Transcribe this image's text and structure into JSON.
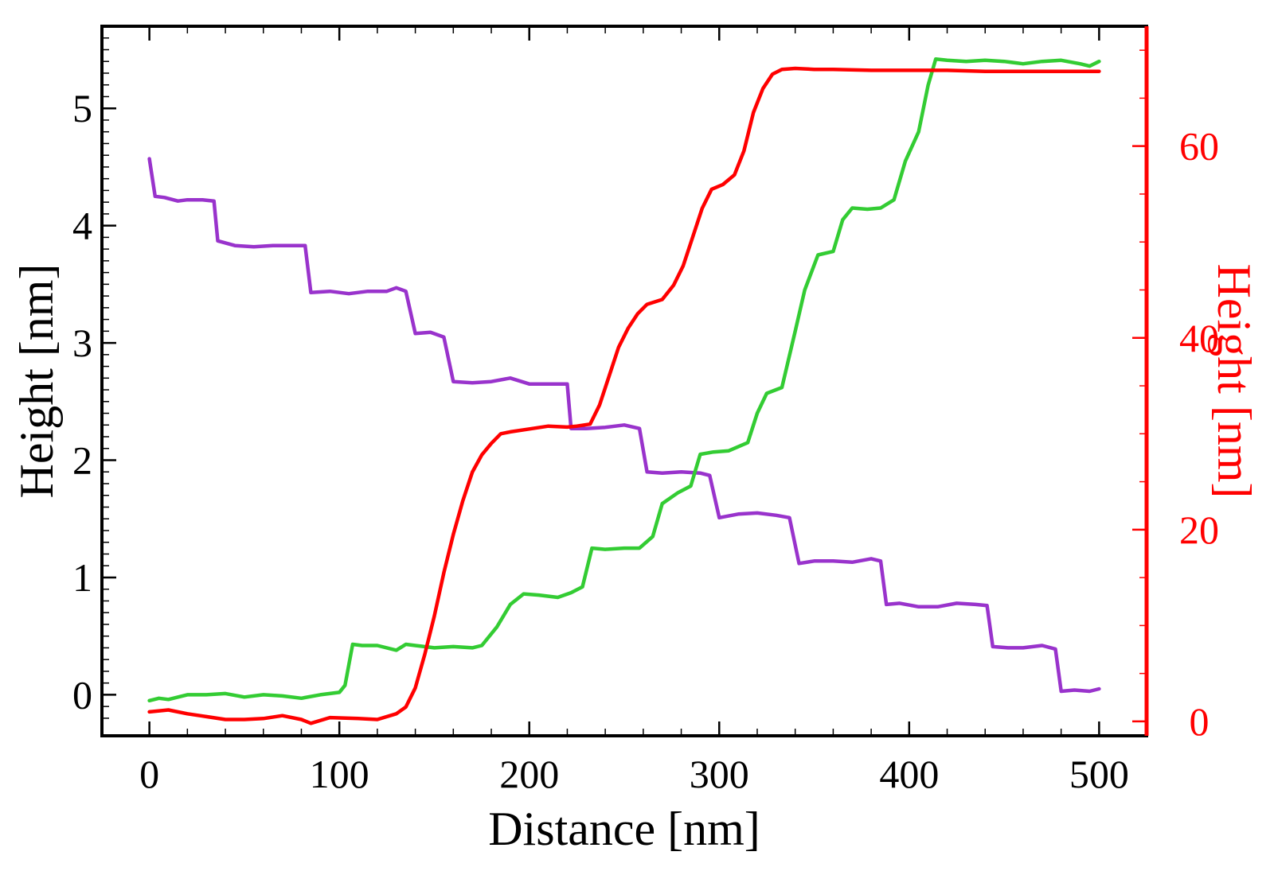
{
  "chart_data": {
    "type": "line",
    "xlabel": "Distance [nm]",
    "ylabel_left": "Height [nm]",
    "ylabel_right": "Height [nm]",
    "xlim": [
      -25,
      525
    ],
    "ylim_left": [
      -0.35,
      5.7
    ],
    "ylim_right": [
      -1.5,
      72.5
    ],
    "x_ticks": [
      0,
      100,
      200,
      300,
      400,
      500
    ],
    "y_ticks_left": [
      0,
      1,
      2,
      3,
      4,
      5
    ],
    "y_ticks_right": [
      0,
      20,
      40,
      60
    ],
    "grid": false,
    "colors": {
      "purple": "#9933cc",
      "green": "#33cc33",
      "red": "#ff0000",
      "axis": "#000000",
      "right_axis": "#ff0000"
    },
    "series": [
      {
        "color": "purple",
        "axis": "left",
        "points": [
          [
            0,
            4.57
          ],
          [
            3,
            4.25
          ],
          [
            8,
            4.24
          ],
          [
            15,
            4.21
          ],
          [
            20,
            4.22
          ],
          [
            28,
            4.22
          ],
          [
            34,
            4.21
          ],
          [
            36,
            3.87
          ],
          [
            45,
            3.83
          ],
          [
            55,
            3.82
          ],
          [
            65,
            3.83
          ],
          [
            75,
            3.83
          ],
          [
            82,
            3.83
          ],
          [
            85,
            3.43
          ],
          [
            95,
            3.44
          ],
          [
            105,
            3.42
          ],
          [
            115,
            3.44
          ],
          [
            125,
            3.44
          ],
          [
            130,
            3.47
          ],
          [
            135,
            3.44
          ],
          [
            140,
            3.08
          ],
          [
            148,
            3.09
          ],
          [
            155,
            3.05
          ],
          [
            160,
            2.67
          ],
          [
            170,
            2.66
          ],
          [
            180,
            2.67
          ],
          [
            190,
            2.7
          ],
          [
            200,
            2.65
          ],
          [
            210,
            2.65
          ],
          [
            220,
            2.65
          ],
          [
            222,
            2.27
          ],
          [
            230,
            2.27
          ],
          [
            240,
            2.28
          ],
          [
            250,
            2.3
          ],
          [
            258,
            2.27
          ],
          [
            262,
            1.9
          ],
          [
            270,
            1.89
          ],
          [
            280,
            1.9
          ],
          [
            290,
            1.89
          ],
          [
            295,
            1.87
          ],
          [
            300,
            1.51
          ],
          [
            310,
            1.54
          ],
          [
            320,
            1.55
          ],
          [
            330,
            1.53
          ],
          [
            337,
            1.51
          ],
          [
            342,
            1.12
          ],
          [
            350,
            1.14
          ],
          [
            360,
            1.14
          ],
          [
            370,
            1.13
          ],
          [
            380,
            1.16
          ],
          [
            385,
            1.14
          ],
          [
            388,
            0.77
          ],
          [
            395,
            0.78
          ],
          [
            405,
            0.75
          ],
          [
            415,
            0.75
          ],
          [
            425,
            0.78
          ],
          [
            435,
            0.77
          ],
          [
            441,
            0.76
          ],
          [
            444,
            0.41
          ],
          [
            452,
            0.4
          ],
          [
            460,
            0.4
          ],
          [
            470,
            0.42
          ],
          [
            477,
            0.39
          ],
          [
            480,
            0.03
          ],
          [
            487,
            0.04
          ],
          [
            495,
            0.03
          ],
          [
            500,
            0.05
          ]
        ]
      },
      {
        "color": "green",
        "axis": "left",
        "points": [
          [
            0,
            -0.05
          ],
          [
            5,
            -0.03
          ],
          [
            10,
            -0.04
          ],
          [
            20,
            0.0
          ],
          [
            30,
            0.0
          ],
          [
            40,
            0.01
          ],
          [
            50,
            -0.02
          ],
          [
            60,
            0.0
          ],
          [
            70,
            -0.01
          ],
          [
            80,
            -0.03
          ],
          [
            90,
            0.0
          ],
          [
            100,
            0.02
          ],
          [
            103,
            0.08
          ],
          [
            107,
            0.43
          ],
          [
            112,
            0.42
          ],
          [
            120,
            0.42
          ],
          [
            130,
            0.38
          ],
          [
            135,
            0.43
          ],
          [
            140,
            0.42
          ],
          [
            150,
            0.4
          ],
          [
            160,
            0.41
          ],
          [
            170,
            0.4
          ],
          [
            175,
            0.42
          ],
          [
            183,
            0.58
          ],
          [
            190,
            0.77
          ],
          [
            197,
            0.86
          ],
          [
            205,
            0.85
          ],
          [
            215,
            0.83
          ],
          [
            222,
            0.87
          ],
          [
            228,
            0.92
          ],
          [
            233,
            1.25
          ],
          [
            240,
            1.24
          ],
          [
            250,
            1.25
          ],
          [
            258,
            1.25
          ],
          [
            265,
            1.35
          ],
          [
            270,
            1.63
          ],
          [
            278,
            1.72
          ],
          [
            285,
            1.78
          ],
          [
            290,
            2.05
          ],
          [
            297,
            2.07
          ],
          [
            305,
            2.08
          ],
          [
            315,
            2.15
          ],
          [
            320,
            2.4
          ],
          [
            325,
            2.57
          ],
          [
            333,
            2.62
          ],
          [
            340,
            3.1
          ],
          [
            345,
            3.45
          ],
          [
            352,
            3.75
          ],
          [
            360,
            3.78
          ],
          [
            365,
            4.05
          ],
          [
            370,
            4.15
          ],
          [
            378,
            4.14
          ],
          [
            385,
            4.15
          ],
          [
            392,
            4.22
          ],
          [
            398,
            4.55
          ],
          [
            405,
            4.8
          ],
          [
            410,
            5.2
          ],
          [
            414,
            5.42
          ],
          [
            420,
            5.41
          ],
          [
            430,
            5.4
          ],
          [
            440,
            5.41
          ],
          [
            450,
            5.4
          ],
          [
            460,
            5.38
          ],
          [
            470,
            5.4
          ],
          [
            480,
            5.41
          ],
          [
            490,
            5.38
          ],
          [
            495,
            5.36
          ],
          [
            500,
            5.4
          ]
        ]
      },
      {
        "color": "red",
        "axis": "right",
        "points": [
          [
            0,
            1.0
          ],
          [
            10,
            1.2
          ],
          [
            20,
            0.8
          ],
          [
            30,
            0.5
          ],
          [
            40,
            0.2
          ],
          [
            50,
            0.2
          ],
          [
            60,
            0.3
          ],
          [
            70,
            0.6
          ],
          [
            80,
            0.2
          ],
          [
            85,
            -0.2
          ],
          [
            95,
            0.4
          ],
          [
            110,
            0.3
          ],
          [
            120,
            0.2
          ],
          [
            130,
            0.8
          ],
          [
            135,
            1.5
          ],
          [
            140,
            3.5
          ],
          [
            145,
            7.0
          ],
          [
            150,
            11.0
          ],
          [
            155,
            15.5
          ],
          [
            160,
            19.5
          ],
          [
            165,
            23.0
          ],
          [
            170,
            26.0
          ],
          [
            175,
            27.8
          ],
          [
            180,
            29.0
          ],
          [
            185,
            30.0
          ],
          [
            190,
            30.2
          ],
          [
            200,
            30.5
          ],
          [
            210,
            30.8
          ],
          [
            220,
            30.7
          ],
          [
            225,
            30.8
          ],
          [
            232,
            31.0
          ],
          [
            237,
            33.0
          ],
          [
            242,
            36.0
          ],
          [
            247,
            39.0
          ],
          [
            252,
            41.0
          ],
          [
            257,
            42.5
          ],
          [
            262,
            43.5
          ],
          [
            270,
            44.0
          ],
          [
            276,
            45.5
          ],
          [
            281,
            47.5
          ],
          [
            286,
            50.5
          ],
          [
            291,
            53.5
          ],
          [
            296,
            55.5
          ],
          [
            302,
            56.0
          ],
          [
            308,
            57.0
          ],
          [
            313,
            59.5
          ],
          [
            318,
            63.5
          ],
          [
            323,
            66.0
          ],
          [
            328,
            67.5
          ],
          [
            333,
            68.0
          ],
          [
            340,
            68.1
          ],
          [
            350,
            68.0
          ],
          [
            360,
            68.0
          ],
          [
            380,
            67.9
          ],
          [
            400,
            67.9
          ],
          [
            420,
            67.9
          ],
          [
            440,
            67.8
          ],
          [
            460,
            67.8
          ],
          [
            480,
            67.8
          ],
          [
            500,
            67.8
          ]
        ]
      }
    ]
  }
}
